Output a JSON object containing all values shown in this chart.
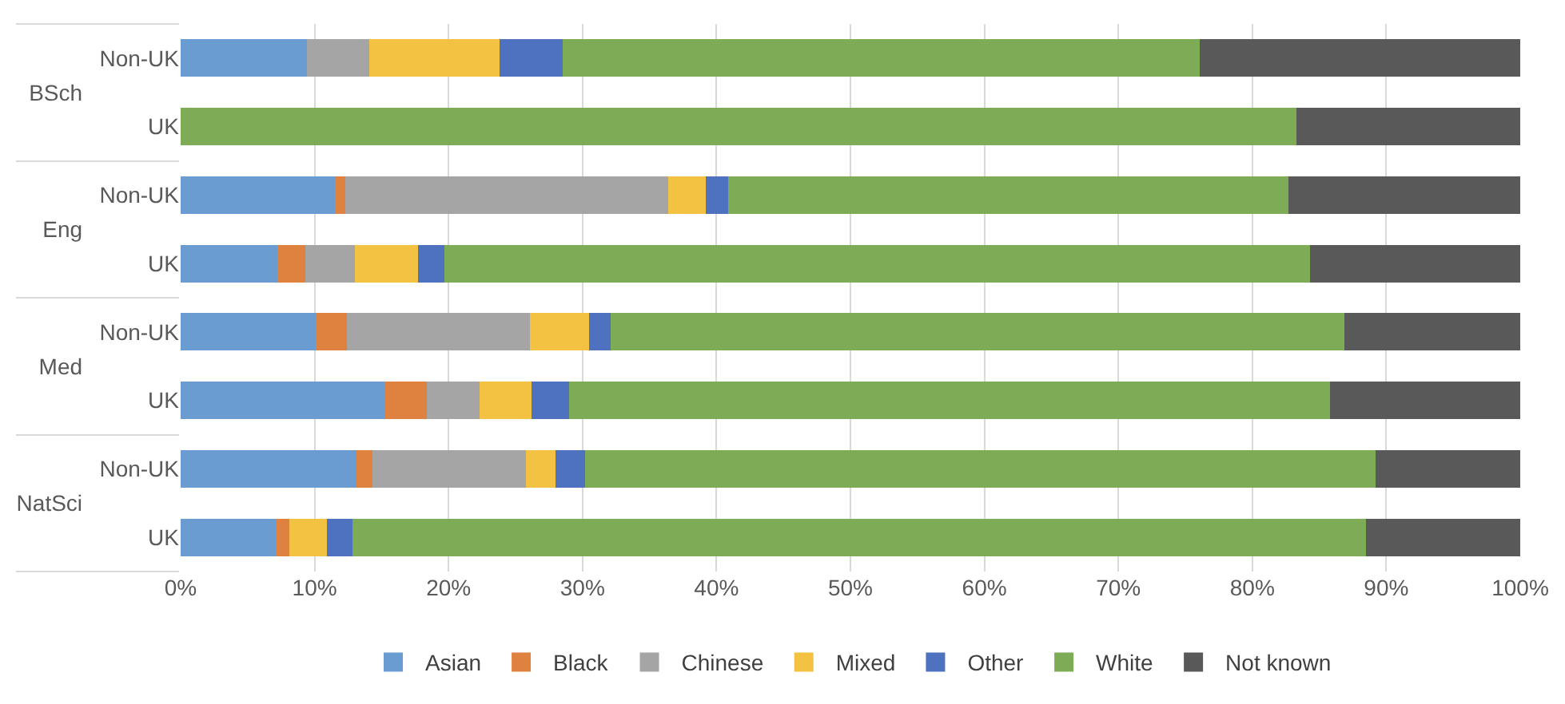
{
  "chart_data": {
    "type": "bar",
    "orientation": "horizontal",
    "stacked": true,
    "categories": [
      "Non-UK",
      "UK",
      "Non-UK",
      "UK",
      "Non-UK",
      "UK",
      "Non-UK",
      "UK"
    ],
    "annotations": [
      "BSch",
      "Eng",
      "Med",
      "NatSci"
    ],
    "series": [
      {
        "name": "Asian",
        "color": "#6a9bd1",
        "values": [
          9.4,
          0,
          11.5,
          7.2,
          10.1,
          15.3,
          13.1,
          7.1
        ]
      },
      {
        "name": "Black",
        "color": "#e0823f",
        "values": [
          0,
          0,
          0.8,
          2.1,
          2.3,
          3.1,
          1.2,
          1.0
        ]
      },
      {
        "name": "Chinese",
        "color": "#a5a5a5",
        "values": [
          4.7,
          0,
          24.1,
          3.7,
          13.7,
          3.9,
          11.5,
          0
        ]
      },
      {
        "name": "Mixed",
        "color": "#f4c242",
        "values": [
          9.7,
          0,
          2.8,
          4.7,
          4.4,
          3.9,
          2.2,
          2.8
        ]
      },
      {
        "name": "Other",
        "color": "#4e72bf",
        "values": [
          4.7,
          0,
          1.7,
          2.0,
          1.6,
          2.8,
          2.2,
          1.9
        ]
      },
      {
        "name": "White",
        "color": "#7eab55",
        "values": [
          47.6,
          83.3,
          41.8,
          64.6,
          54.8,
          56.8,
          59.0,
          75.7
        ]
      },
      {
        "name": "Not known",
        "color": "#595959",
        "values": [
          23.9,
          16.7,
          17.3,
          15.7,
          13.1,
          14.2,
          10.8,
          11.5
        ]
      }
    ],
    "xlim": [
      0,
      100
    ],
    "xticks": [
      {
        "value": 0,
        "label": "0%"
      },
      {
        "value": 10,
        "label": "10%"
      },
      {
        "value": 20,
        "label": "20%"
      },
      {
        "value": 30,
        "label": "30%"
      },
      {
        "value": 40,
        "label": "40%"
      },
      {
        "value": 50,
        "label": "50%"
      },
      {
        "value": 60,
        "label": "60%"
      },
      {
        "value": 70,
        "label": "70%"
      },
      {
        "value": 80,
        "label": "80%"
      },
      {
        "value": 90,
        "label": "90%"
      },
      {
        "value": 100,
        "label": "100%"
      }
    ],
    "grid": "x",
    "legend": "bottom"
  }
}
